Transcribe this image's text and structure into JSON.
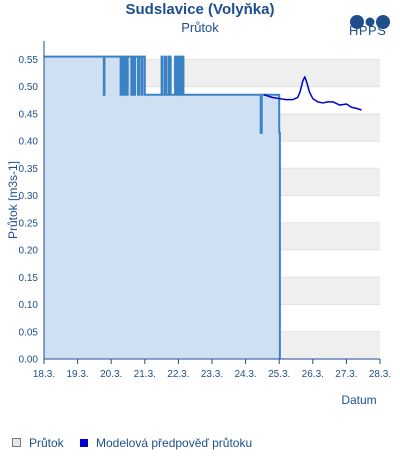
{
  "chart_data": {
    "type": "line",
    "title": "Sudslavice (Volyňka)",
    "subtitle": "Průtok",
    "xlabel": "Datum",
    "ylabel": "Průtok [m3s-1]",
    "x_ticks": [
      "18.3.",
      "19.3.",
      "20.3.",
      "21.3.",
      "22.3.",
      "23.3.",
      "24.3.",
      "25.3.",
      "26.3.",
      "27.3.",
      "28.3."
    ],
    "y_ticks": [
      "0.00",
      "0.05",
      "0.10",
      "0.15",
      "0.20",
      "0.25",
      "0.30",
      "0.35",
      "0.40",
      "0.45",
      "0.50",
      "0.55"
    ],
    "xlim": [
      18.0,
      28.0
    ],
    "ylim": [
      0.0,
      0.58
    ],
    "grid": "horizontal alternating bands",
    "legend_position": "bottom",
    "colors": {
      "observed_line": "#3a82c4",
      "observed_fill": "#cfe0f3",
      "forecast_line": "#0000cc",
      "band": "#efefef",
      "axis": "#1f4e8c"
    },
    "series": [
      {
        "name": "Průtok",
        "style": "area-step",
        "points": [
          [
            18.0,
            0.555
          ],
          [
            19.78,
            0.555
          ],
          [
            19.78,
            0.485
          ],
          [
            19.8,
            0.485
          ],
          [
            19.8,
            0.555
          ],
          [
            20.28,
            0.555
          ],
          [
            20.28,
            0.485
          ],
          [
            20.31,
            0.485
          ],
          [
            20.31,
            0.555
          ],
          [
            20.37,
            0.555
          ],
          [
            20.37,
            0.485
          ],
          [
            20.4,
            0.485
          ],
          [
            20.4,
            0.555
          ],
          [
            20.46,
            0.555
          ],
          [
            20.46,
            0.485
          ],
          [
            20.49,
            0.485
          ],
          [
            20.49,
            0.555
          ],
          [
            20.6,
            0.555
          ],
          [
            20.6,
            0.485
          ],
          [
            20.63,
            0.485
          ],
          [
            20.63,
            0.555
          ],
          [
            20.68,
            0.555
          ],
          [
            20.68,
            0.485
          ],
          [
            20.71,
            0.485
          ],
          [
            20.71,
            0.555
          ],
          [
            20.8,
            0.555
          ],
          [
            20.8,
            0.485
          ],
          [
            20.83,
            0.485
          ],
          [
            20.83,
            0.555
          ],
          [
            20.9,
            0.555
          ],
          [
            20.9,
            0.485
          ],
          [
            20.93,
            0.485
          ],
          [
            20.93,
            0.555
          ],
          [
            21.0,
            0.555
          ],
          [
            21.0,
            0.485
          ],
          [
            21.5,
            0.485
          ],
          [
            21.5,
            0.555
          ],
          [
            21.53,
            0.555
          ],
          [
            21.53,
            0.485
          ],
          [
            21.6,
            0.485
          ],
          [
            21.6,
            0.555
          ],
          [
            21.65,
            0.555
          ],
          [
            21.65,
            0.485
          ],
          [
            21.72,
            0.485
          ],
          [
            21.72,
            0.555
          ],
          [
            21.77,
            0.555
          ],
          [
            21.77,
            0.485
          ],
          [
            21.9,
            0.485
          ],
          [
            21.9,
            0.555
          ],
          [
            21.95,
            0.555
          ],
          [
            21.95,
            0.485
          ],
          [
            22.0,
            0.485
          ],
          [
            22.0,
            0.555
          ],
          [
            22.05,
            0.555
          ],
          [
            22.05,
            0.485
          ],
          [
            22.1,
            0.485
          ],
          [
            22.1,
            0.555
          ],
          [
            22.15,
            0.555
          ],
          [
            22.15,
            0.485
          ],
          [
            24.45,
            0.485
          ],
          [
            24.45,
            0.415
          ],
          [
            24.48,
            0.415
          ],
          [
            24.48,
            0.485
          ],
          [
            25.0,
            0.485
          ],
          [
            25.0,
            0.415
          ],
          [
            25.02,
            0.415
          ]
        ]
      },
      {
        "name": "Modelová předpověď průtoku",
        "style": "line",
        "points": [
          [
            24.55,
            0.485
          ],
          [
            24.8,
            0.48
          ],
          [
            25.0,
            0.478
          ],
          [
            25.2,
            0.476
          ],
          [
            25.4,
            0.476
          ],
          [
            25.55,
            0.48
          ],
          [
            25.62,
            0.49
          ],
          [
            25.7,
            0.51
          ],
          [
            25.76,
            0.518
          ],
          [
            25.82,
            0.508
          ],
          [
            25.9,
            0.49
          ],
          [
            26.0,
            0.478
          ],
          [
            26.15,
            0.472
          ],
          [
            26.3,
            0.47
          ],
          [
            26.45,
            0.472
          ],
          [
            26.6,
            0.472
          ],
          [
            26.8,
            0.466
          ],
          [
            27.0,
            0.468
          ],
          [
            27.15,
            0.462
          ],
          [
            27.3,
            0.46
          ],
          [
            27.45,
            0.457
          ]
        ]
      }
    ]
  },
  "branding": {
    "logo_text": "HPPS"
  }
}
